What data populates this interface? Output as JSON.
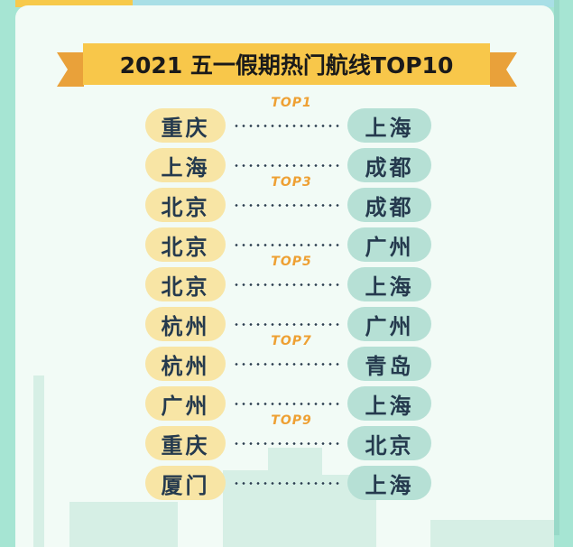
{
  "title": "2021 五一假期热门航线TOP10",
  "routes": [
    {
      "from": "重庆",
      "to": "上海",
      "rank": "TOP1"
    },
    {
      "from": "上海",
      "to": "成都",
      "rank": ""
    },
    {
      "from": "北京",
      "to": "成都",
      "rank": "TOP3"
    },
    {
      "from": "北京",
      "to": "广州",
      "rank": ""
    },
    {
      "from": "北京",
      "to": "上海",
      "rank": "TOP5"
    },
    {
      "from": "杭州",
      "to": "广州",
      "rank": ""
    },
    {
      "from": "杭州",
      "to": "青岛",
      "rank": "TOP7"
    },
    {
      "from": "广州",
      "to": "上海",
      "rank": ""
    },
    {
      "from": "重庆",
      "to": "北京",
      "rank": "TOP9"
    },
    {
      "from": "厦门",
      "to": "上海",
      "rank": ""
    }
  ],
  "colors": {
    "background": "#a6e5d3",
    "banner": "#f8c74a",
    "ribbon": "#e9a13a",
    "origin_pill": "#f8e5a5",
    "dest_pill": "#b6e0d5",
    "rank": "#eea033"
  }
}
